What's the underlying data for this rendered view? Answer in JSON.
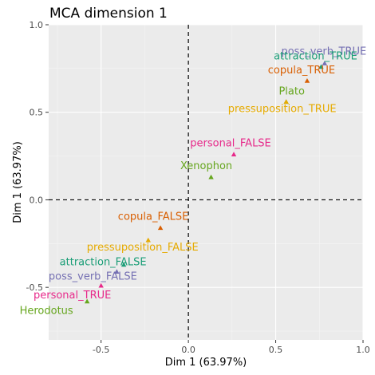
{
  "chart_data": {
    "type": "scatter",
    "title": "MCA dimension 1",
    "xlabel": "Dim 1 (63.97%)",
    "ylabel": "Dim 1 (63.97%)",
    "xlim": [
      -0.8,
      1.0
    ],
    "ylim": [
      -0.8,
      1.0
    ],
    "x_ticks": [
      -0.5,
      0.0,
      0.5,
      1.0
    ],
    "x_tick_labels": [
      "-0.5",
      "0.0",
      "0.5",
      "1.0"
    ],
    "y_ticks": [
      -0.5,
      0.0,
      0.5,
      1.0
    ],
    "y_tick_labels": [
      "-0.5",
      "0.0",
      "0.5",
      "1.0"
    ],
    "grid": true,
    "reference_lines": {
      "x": 0,
      "y": 0,
      "style": "dashed"
    },
    "points": [
      {
        "label": "poss_verb_TRUE",
        "x": 0.78,
        "y": 0.78,
        "color": "#7570b3"
      },
      {
        "label": "attraction_TRUE",
        "x": 0.76,
        "y": 0.76,
        "color": "#1b9e77"
      },
      {
        "label": "copula_TRUE",
        "x": 0.68,
        "y": 0.68,
        "color": "#d95f02"
      },
      {
        "label": "Plato",
        "x": 0.56,
        "y": 0.56,
        "color": "#66a61e"
      },
      {
        "label": "pressuposition_TRUE",
        "x": 0.56,
        "y": 0.56,
        "color": "#e6ab02"
      },
      {
        "label": "personal_FALSE",
        "x": 0.26,
        "y": 0.26,
        "color": "#e7298a"
      },
      {
        "label": "Xenophon",
        "x": 0.13,
        "y": 0.13,
        "color": "#66a61e"
      },
      {
        "label": "copula_FALSE",
        "x": -0.16,
        "y": -0.16,
        "color": "#d95f02"
      },
      {
        "label": "pressuposition_FALSE",
        "x": -0.23,
        "y": -0.23,
        "color": "#e6ab02"
      },
      {
        "label": "attraction_FALSE",
        "x": -0.37,
        "y": -0.37,
        "color": "#1b9e77"
      },
      {
        "label": "poss_verb_FALSE",
        "x": -0.41,
        "y": -0.41,
        "color": "#7570b3"
      },
      {
        "label": "personal_TRUE",
        "x": -0.5,
        "y": -0.49,
        "color": "#e7298a"
      },
      {
        "label": "Herodotus",
        "x": -0.58,
        "y": -0.58,
        "color": "#66a61e"
      }
    ]
  },
  "colors": {
    "panel_background": "#ebebeb",
    "grid": "#ffffff",
    "reference_line": "#000000"
  }
}
